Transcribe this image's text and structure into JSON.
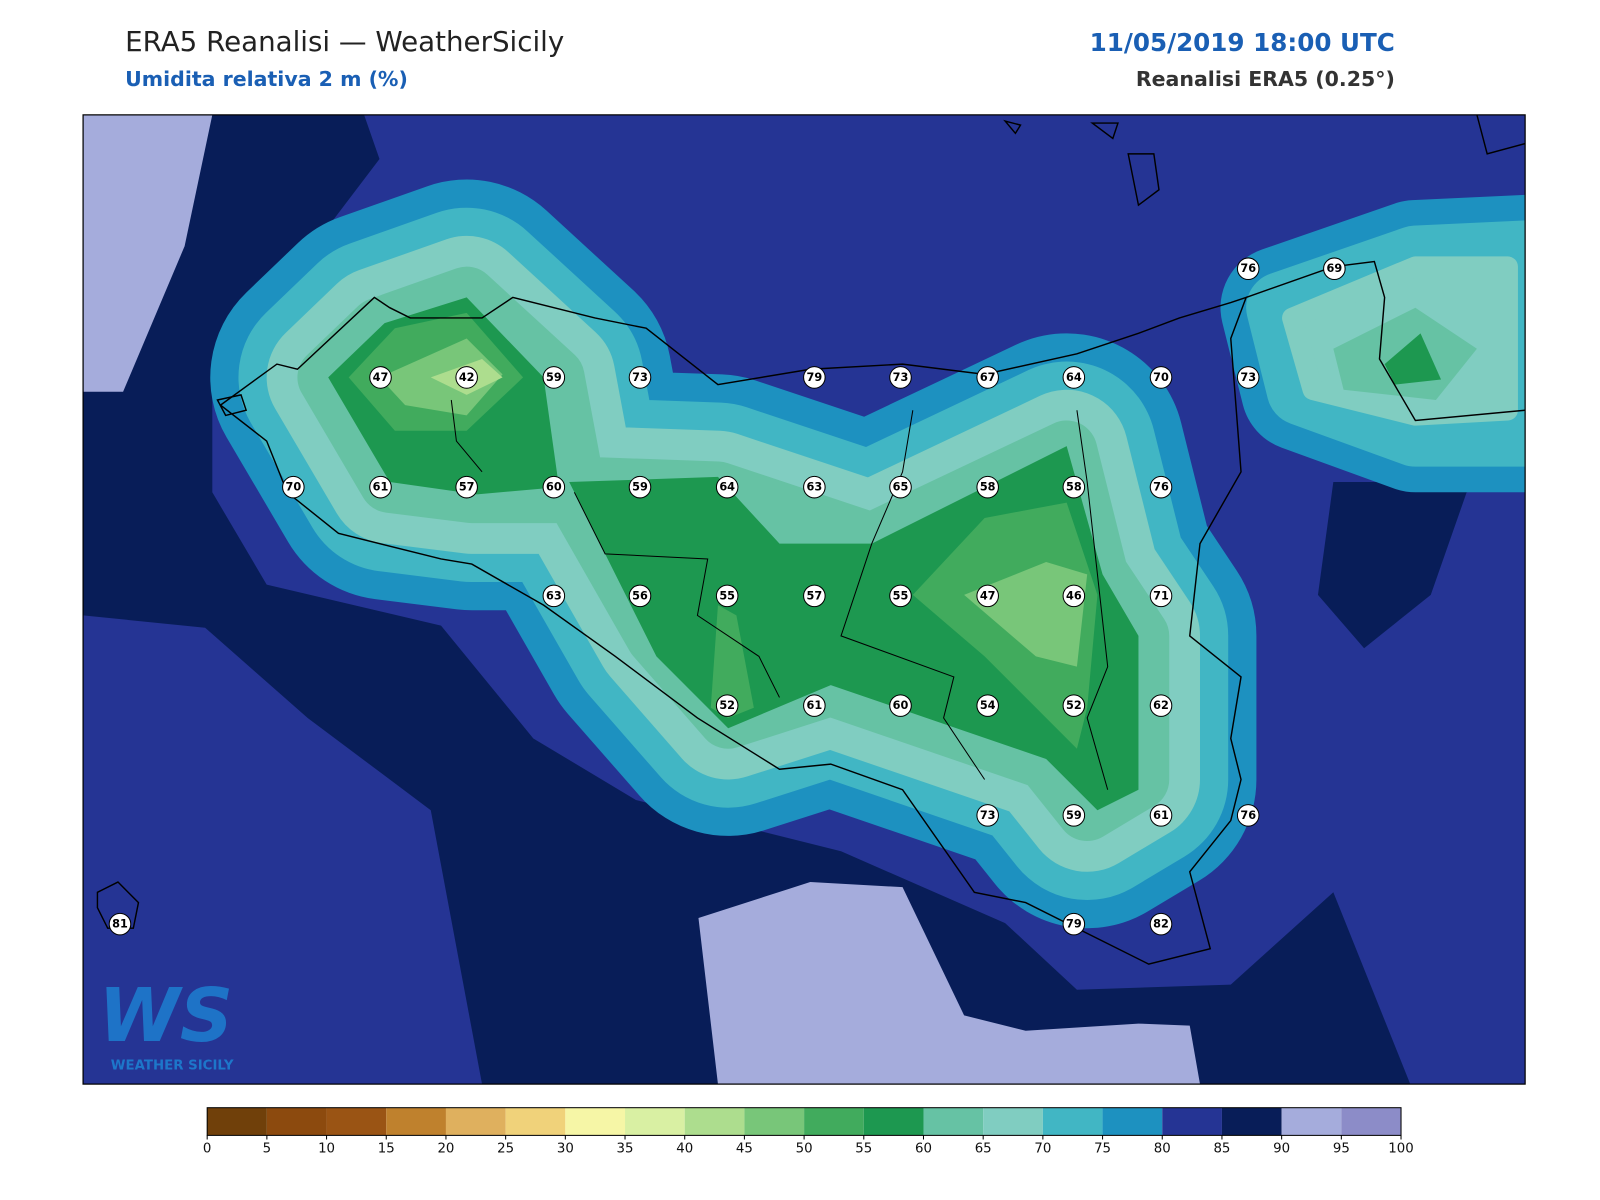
{
  "header": {
    "title": "ERA5 Reanalisi — WeatherSicily",
    "subtitle": "Umidita relativa 2 m (%)",
    "datetime": "11/05/2019 18:00 UTC",
    "source": "Reanalisi ERA5 (0.25°)"
  },
  "stations": [
    76,
    69,
    47,
    42,
    59,
    73,
    79,
    73,
    67,
    64,
    70,
    73,
    70,
    61,
    57,
    60,
    59,
    64,
    63,
    65,
    58,
    58,
    76,
    63,
    56,
    55,
    57,
    55,
    47,
    46,
    71,
    52,
    61,
    60,
    54,
    52,
    62,
    73,
    59,
    61,
    76,
    81,
    79,
    82
  ],
  "colorbar": {
    "ticks": [
      0,
      5,
      10,
      15,
      20,
      25,
      30,
      35,
      40,
      45,
      50,
      55,
      60,
      65,
      70,
      75,
      80,
      85,
      90,
      95,
      100
    ],
    "colors": [
      "#70400a",
      "#8c4a0e",
      "#9a5414",
      "#bf812d",
      "#dfb05e",
      "#f0d27a",
      "#f6f6a6",
      "#d9f0a3",
      "#addd8e",
      "#78c679",
      "#41ab5d",
      "#1d9850",
      "#66c2a4",
      "#80cdc1",
      "#41b6c4",
      "#1d91c0",
      "#253494",
      "#081d58",
      "#a5acdc",
      "#8c8cc8"
    ]
  },
  "logo": {
    "mark": "WS",
    "text": "WEATHER SICILY"
  }
}
